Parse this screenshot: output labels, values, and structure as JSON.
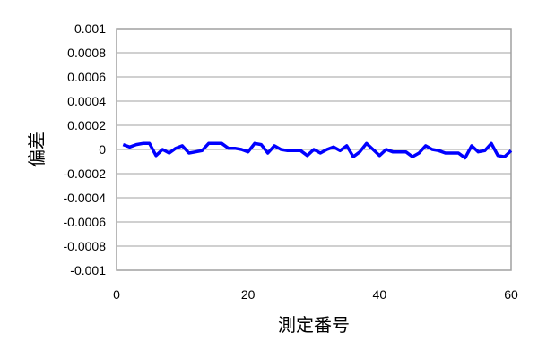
{
  "chart_data": {
    "type": "line",
    "title": "",
    "xlabel": "測定番号",
    "ylabel": "偏差",
    "xlim": [
      0,
      60
    ],
    "ylim": [
      -0.001,
      0.001
    ],
    "xticks": [
      "0",
      "20",
      "40",
      "60"
    ],
    "yticks": [
      "0.001",
      "0.0008",
      "0.0006",
      "0.0004",
      "0.0002",
      "0",
      "-0.0002",
      "-0.0004",
      "-0.0006",
      "-0.0008",
      "-0.001"
    ],
    "grid": "horizontal",
    "legend": "none",
    "series": [
      {
        "color": "#0000ff",
        "x": [
          1,
          2,
          3,
          4,
          5,
          6,
          7,
          8,
          9,
          10,
          11,
          12,
          13,
          14,
          15,
          16,
          17,
          18,
          19,
          20,
          21,
          22,
          23,
          24,
          25,
          26,
          27,
          28,
          29,
          30,
          31,
          32,
          33,
          34,
          35,
          36,
          37,
          38,
          39,
          40,
          41,
          42,
          43,
          44,
          45,
          46,
          47,
          48,
          49,
          50,
          51,
          52,
          53,
          54,
          55,
          56,
          57,
          58,
          59,
          60
        ],
        "values": [
          4e-05,
          2e-05,
          4e-05,
          5e-05,
          5e-05,
          -5e-05,
          0,
          -3e-05,
          1e-05,
          3e-05,
          -3e-05,
          -2e-05,
          -1e-05,
          5e-05,
          5e-05,
          5e-05,
          1e-05,
          1e-05,
          0,
          -2e-05,
          5e-05,
          4e-05,
          -3e-05,
          3e-05,
          0,
          -1e-05,
          -1e-05,
          -1e-05,
          -5e-05,
          0,
          -3e-05,
          0,
          2e-05,
          -1e-05,
          3e-05,
          -6e-05,
          -2e-05,
          5e-05,
          0,
          -5e-05,
          0,
          -2e-05,
          -2e-05,
          -2e-05,
          -6e-05,
          -3e-05,
          3e-05,
          0,
          -1e-05,
          -3e-05,
          -3e-05,
          -3e-05,
          -7e-05,
          3e-05,
          -2e-05,
          -1e-05,
          5e-05,
          -5e-05,
          -6e-05,
          -1e-05
        ]
      }
    ]
  }
}
